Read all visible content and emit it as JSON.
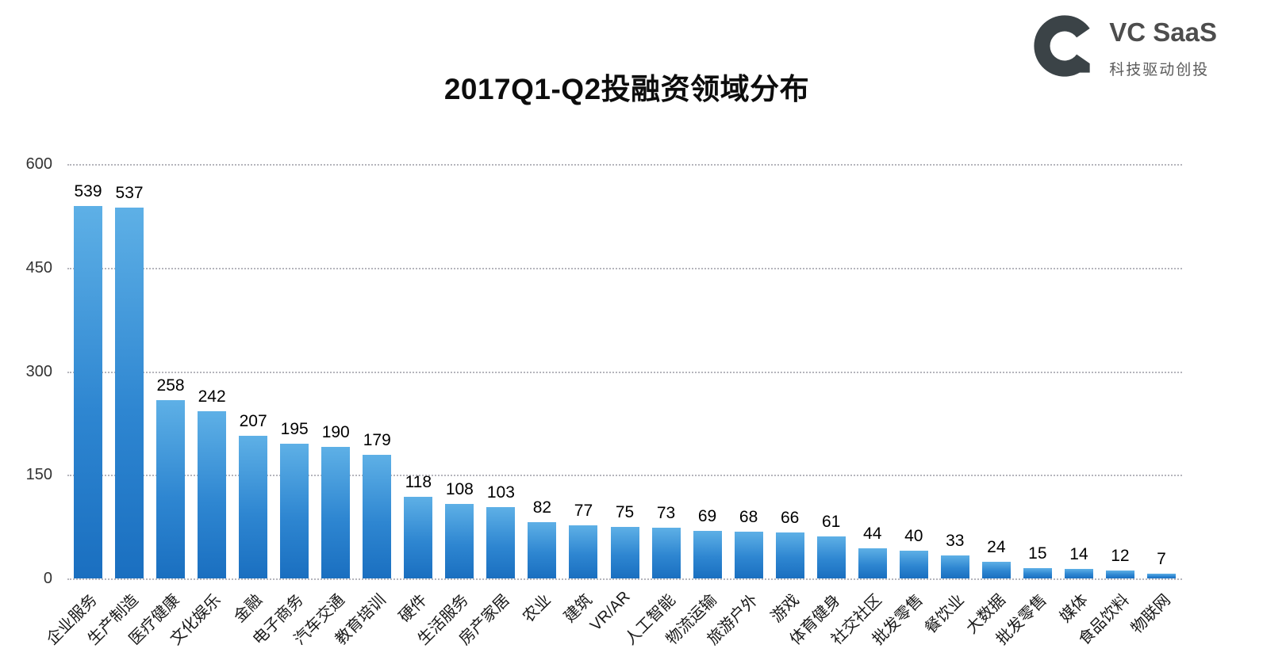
{
  "title": "2017Q1-Q2投融资领域分布",
  "logo": {
    "name": "VC SaaS",
    "subtitle": "科技驱动创投",
    "icon": "vcsaas-c-mark",
    "icon_color": "#3b4347"
  },
  "colors": {
    "bar_gradient_top": "#5eb0e6",
    "bar_gradient_bottom": "#1a6fc0",
    "gridline": "#b5b5bc",
    "title_text": "#0d0d0d"
  },
  "chart_data": {
    "type": "bar",
    "title": "2017Q1-Q2投融资领域分布",
    "categories": [
      "企业服务",
      "生产制造",
      "医疗健康",
      "文化娱乐",
      "金融",
      "电子商务",
      "汽车交通",
      "教育培训",
      "硬件",
      "生活服务",
      "房产家居",
      "农业",
      "建筑",
      "VR/AR",
      "人工智能",
      "物流运输",
      "旅游户外",
      "游戏",
      "体育健身",
      "社交社区",
      "批发零售",
      "餐饮业",
      "大数据",
      "批发零售",
      "媒体",
      "食品饮料",
      "物联网"
    ],
    "values": [
      539,
      537,
      258,
      242,
      207,
      195,
      190,
      179,
      118,
      108,
      103,
      82,
      77,
      75,
      73,
      69,
      68,
      66,
      61,
      44,
      40,
      33,
      24,
      15,
      14,
      12,
      7
    ],
    "xlabel": "",
    "ylabel": "",
    "ylim": [
      0,
      600
    ],
    "yticks": [
      0,
      150,
      300,
      450,
      600
    ],
    "grid": "horizontal-dotted",
    "legend": "none",
    "x_label_rotation": -45,
    "value_labels": "above-bars"
  }
}
